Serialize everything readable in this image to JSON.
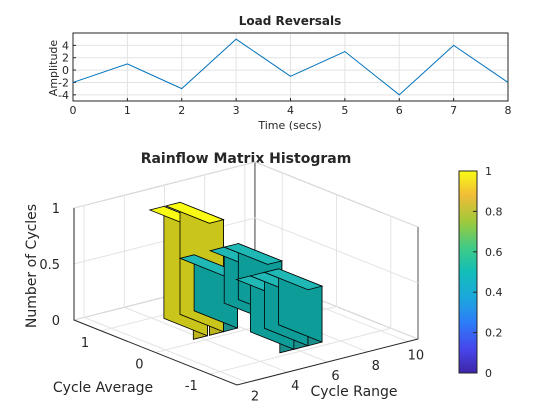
{
  "chart_data": [
    {
      "type": "line",
      "title": "Load Reversals",
      "xlabel": "Time (secs)",
      "ylabel": "Amplitude",
      "xlim": [
        0,
        8
      ],
      "ylim": [
        -5,
        6
      ],
      "xticks": [
        "0",
        "1",
        "2",
        "3",
        "4",
        "5",
        "6",
        "7",
        "8"
      ],
      "yticks": [
        "4",
        "2",
        "0",
        "-2",
        "-4"
      ],
      "grid": true,
      "color": "#0072BD",
      "x": [
        0,
        1,
        2,
        3,
        4,
        5,
        6,
        7,
        8
      ],
      "y": [
        -2,
        1,
        -3,
        5,
        -1,
        3,
        -4,
        4,
        -2
      ]
    },
    {
      "type": "bar3",
      "title": "Rainflow Matrix Histogram",
      "xlabel": "Cycle Range",
      "ylabel": "Cycle Average",
      "zlabel": "Number of Cycles",
      "xticks": [
        "2",
        "4",
        "6",
        "8",
        "10"
      ],
      "yticks": [
        "1",
        "0",
        "-1"
      ],
      "zticks": [
        "1",
        "0.5",
        "0"
      ],
      "xlim": [
        1.5,
        10.5
      ],
      "ylim": [
        -1.5,
        1.5
      ],
      "zlim": [
        0,
        1
      ],
      "colormap": "parula",
      "colorbar_ticks": [
        "1",
        "0.8",
        "0.6",
        "0.4",
        "0.2",
        "0"
      ],
      "bars": [
        {
          "range": 4,
          "average": 0.5,
          "count": 1
        },
        {
          "range": 4.8,
          "average": 0.5,
          "count": 1
        },
        {
          "range": 7,
          "average": 0.5,
          "count": 0.5
        },
        {
          "range": 7.7,
          "average": 0.5,
          "count": 0.5
        },
        {
          "range": 7,
          "average": -0.5,
          "count": 0.5
        },
        {
          "range": 5.6,
          "average": -0.5,
          "count": 0.5
        },
        {
          "range": 6.3,
          "average": -0.5,
          "count": 0.5
        },
        {
          "range": 5.5,
          "average": 0.5,
          "count": 0.5
        }
      ]
    }
  ]
}
